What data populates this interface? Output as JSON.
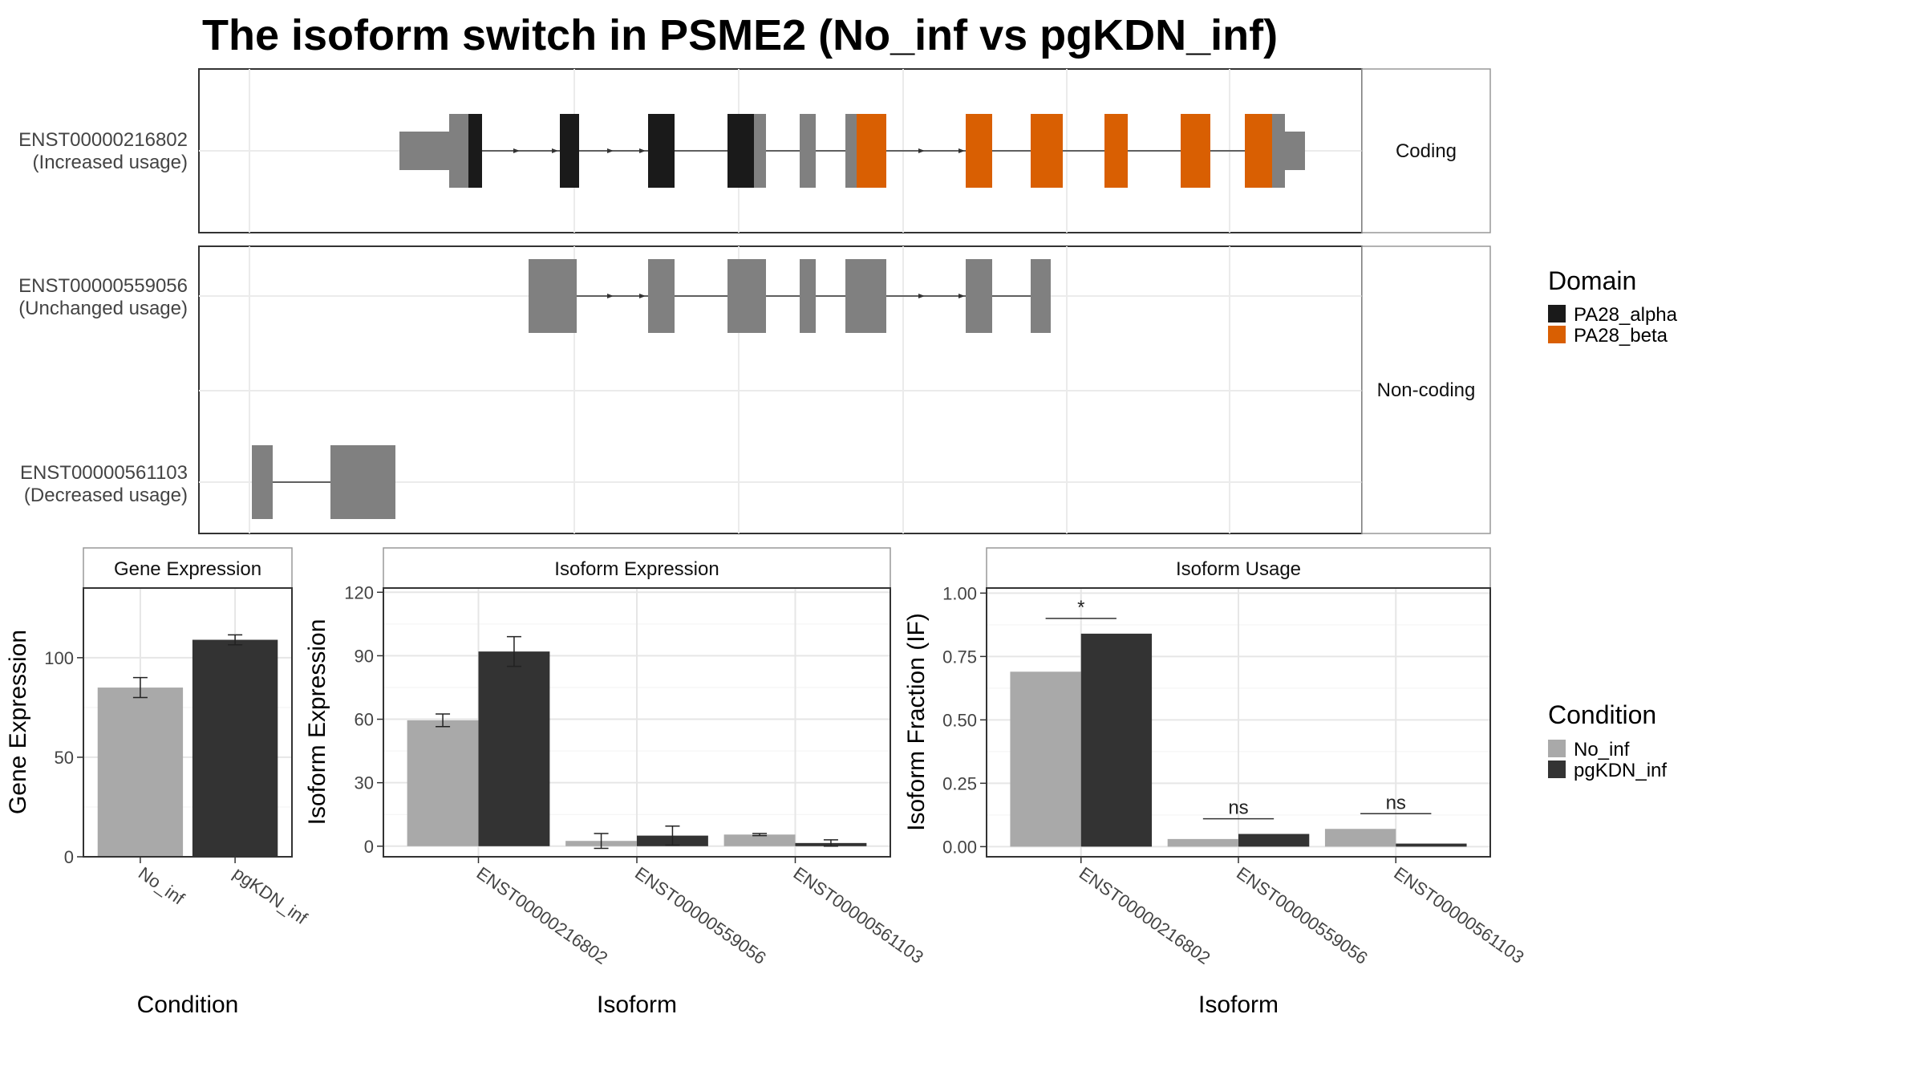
{
  "title": "The isoform switch in PSME2 (No_inf vs pgKDN_inf)",
  "colors": {
    "exon": "#808080",
    "PA28_alpha": "#1a1a1a",
    "PA28_beta": "#d95f02",
    "No_inf": "#a9a9a9",
    "pgKDN_inf": "#333333"
  },
  "transcripts": {
    "facets": [
      "Coding",
      "Non-coding"
    ],
    "isoforms": [
      {
        "id": "ENST00000216802",
        "usage": "(Increased usage)",
        "facet": "Coding"
      },
      {
        "id": "ENST00000559056",
        "usage": "(Unchanged usage)",
        "facet": "Non-coding"
      },
      {
        "id": "ENST00000561103",
        "usage": "(Decreased usage)",
        "facet": "Non-coding"
      }
    ]
  },
  "legends": {
    "domain": {
      "title": "Domain",
      "items": [
        "PA28_alpha",
        "PA28_beta"
      ]
    },
    "condition": {
      "title": "Condition",
      "items": [
        "No_inf",
        "pgKDN_inf"
      ]
    }
  },
  "chart_data": [
    {
      "type": "bar",
      "strip": "Gene Expression",
      "xlabel": "Condition",
      "ylabel": "Gene Expression",
      "categories": [
        "No_inf",
        "pgKDN_inf"
      ],
      "values": [
        85,
        109
      ],
      "errors": [
        5,
        2.5
      ],
      "ylim": [
        0,
        135
      ],
      "yticks": [
        0,
        50,
        100
      ]
    },
    {
      "type": "bar",
      "strip": "Isoform Expression",
      "xlabel": "Isoform",
      "ylabel": "Isoform Expression",
      "categories": [
        "ENST00000216802",
        "ENST00000559056",
        "ENST00000561103"
      ],
      "series": [
        {
          "name": "No_inf",
          "values": [
            59.5,
            2.5,
            5.5
          ],
          "errors": [
            3,
            3.5,
            0.5
          ]
        },
        {
          "name": "pgKDN_inf",
          "values": [
            92,
            5,
            1.5
          ],
          "errors": [
            7,
            4.5,
            1.5
          ]
        }
      ],
      "ylim": [
        -5,
        122
      ],
      "yticks": [
        0,
        30,
        60,
        90,
        120
      ]
    },
    {
      "type": "bar",
      "strip": "Isoform Usage",
      "xlabel": "Isoform",
      "ylabel": "Isoform Fraction (IF)",
      "categories": [
        "ENST00000216802",
        "ENST00000559056",
        "ENST00000561103"
      ],
      "series": [
        {
          "name": "No_inf",
          "values": [
            0.69,
            0.03,
            0.07
          ]
        },
        {
          "name": "pgKDN_inf",
          "values": [
            0.84,
            0.05,
            0.012
          ]
        }
      ],
      "significance": [
        "*",
        "ns",
        "ns"
      ],
      "ylim": [
        -0.04,
        1.02
      ],
      "yticks": [
        "0.00",
        "0.25",
        "0.50",
        "0.75",
        "1.00"
      ]
    }
  ]
}
